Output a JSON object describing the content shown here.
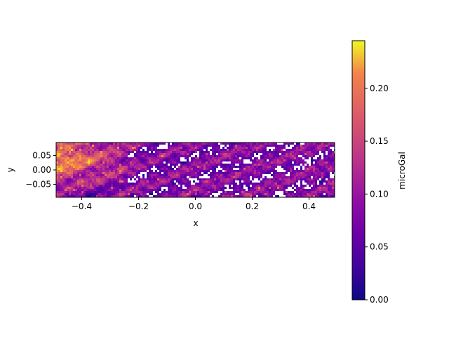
{
  "chart_data": {
    "type": "heatmap",
    "title": "",
    "xlabel": "x",
    "ylabel": "y",
    "xlim": [
      -0.49,
      0.49
    ],
    "ylim": [
      -0.095,
      0.095
    ],
    "x_ticks": [
      -0.4,
      -0.2,
      0.0,
      0.2,
      0.4
    ],
    "x_tick_labels": [
      "−0.4",
      "−0.2",
      "0.0",
      "0.2",
      "0.4"
    ],
    "y_ticks": [
      0.05,
      0.0,
      -0.05
    ],
    "y_tick_labels": [
      "0.05",
      "0.00",
      "−0.05"
    ],
    "colormap": "plasma",
    "colorbar": {
      "label": "microGal",
      "range": [
        0.0,
        0.245
      ],
      "ticks": [
        0.0,
        0.05,
        0.1,
        0.15,
        0.2
      ],
      "tick_labels": [
        "0.00",
        "0.05",
        "0.10",
        "0.15",
        "0.20"
      ]
    },
    "field": {
      "description_of_values": "speckled anomaly field; highest values near upper-left (≈0.20–0.24 microGal), mostly 0.02–0.12 elsewhere, with scattered masked (blank) patches",
      "peak_value": 0.24,
      "typical_value": 0.06
    }
  }
}
